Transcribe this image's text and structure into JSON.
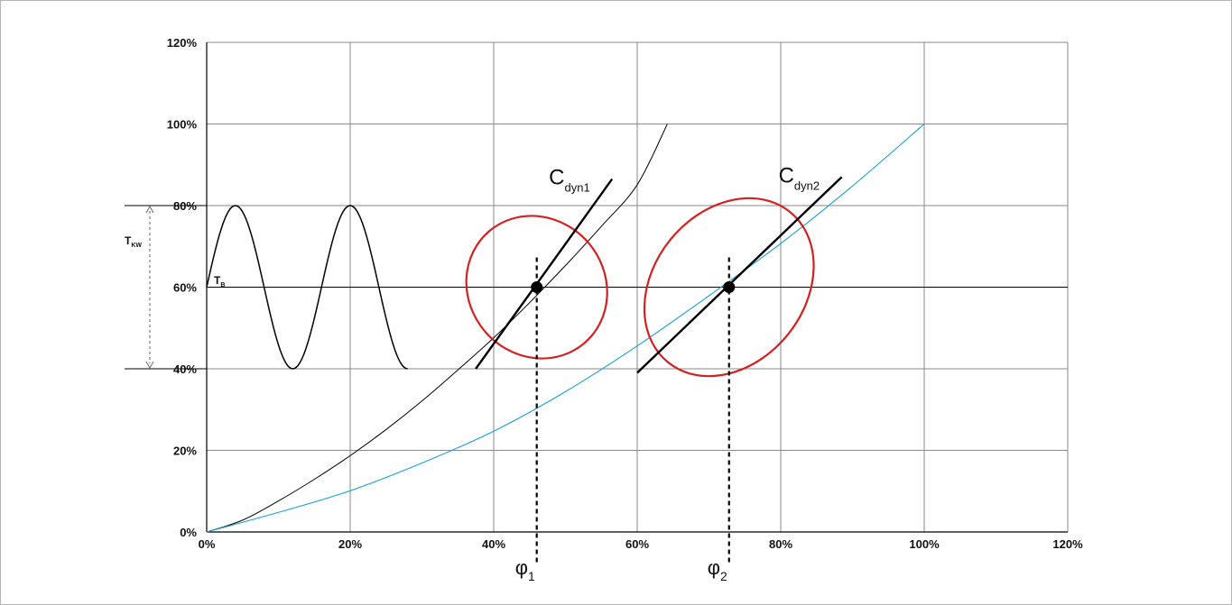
{
  "chart_data": {
    "type": "line",
    "xlim": [
      0,
      120
    ],
    "ylim": [
      0,
      120
    ],
    "x_ticks": [
      "0%",
      "20%",
      "40%",
      "60%",
      "80%",
      "100%",
      "120%"
    ],
    "y_ticks": [
      "0%",
      "20%",
      "40%",
      "60%",
      "80%",
      "100%",
      "120%"
    ],
    "grid": true,
    "series": [
      {
        "color": "#000000",
        "x": [
          0,
          5,
          10,
          15,
          20,
          25,
          30,
          35,
          40,
          45,
          50,
          55,
          60,
          64.2
        ],
        "y": [
          0,
          2.9,
          7.6,
          12.9,
          18.7,
          25.1,
          32.1,
          39.7,
          47.6,
          56.2,
          65.3,
          74.9,
          85.1,
          100
        ]
      },
      {
        "color": "#1a9fd6",
        "x": [
          0,
          10,
          20,
          30,
          40,
          50,
          60,
          70,
          80,
          90,
          100
        ],
        "y": [
          0,
          4.8,
          10.1,
          16.9,
          24.7,
          34.4,
          45.6,
          57.9,
          70.7,
          84.8,
          100
        ]
      }
    ],
    "oscillation": {
      "color": "#000000",
      "x_start": 0,
      "x_end": 28,
      "center": 60,
      "amplitude": 20,
      "period": 16,
      "x_peak": 4
    },
    "dynamic_lines": [
      {
        "label_main": "C",
        "label_sub": "dyn1",
        "x": [
          37.5,
          56.5
        ],
        "y": [
          40,
          86.5
        ]
      },
      {
        "label_main": "C",
        "label_sub": "dyn2",
        "x": [
          60,
          88.5
        ],
        "y": [
          39,
          87
        ]
      }
    ],
    "ellipses": [
      {
        "color": "#d42020",
        "cx": 46,
        "cy": 60,
        "rx": 9.5,
        "ry": 36,
        "angle": -40
      },
      {
        "color": "#d42020",
        "cx": 72.8,
        "cy": 60,
        "rx": 13.5,
        "ry": 37,
        "angle": -51
      }
    ],
    "operating_points": [
      {
        "x": 46,
        "y": 60,
        "label_main": "φ",
        "label_sub": "1"
      },
      {
        "x": 72.8,
        "y": 60,
        "label_main": "φ",
        "label_sub": "2"
      }
    ],
    "annotations": {
      "tkw_main": "T",
      "tkw_sub": "KW",
      "tb_main": "T",
      "tb_sub": "B",
      "tkw_range": [
        40,
        80
      ]
    }
  }
}
